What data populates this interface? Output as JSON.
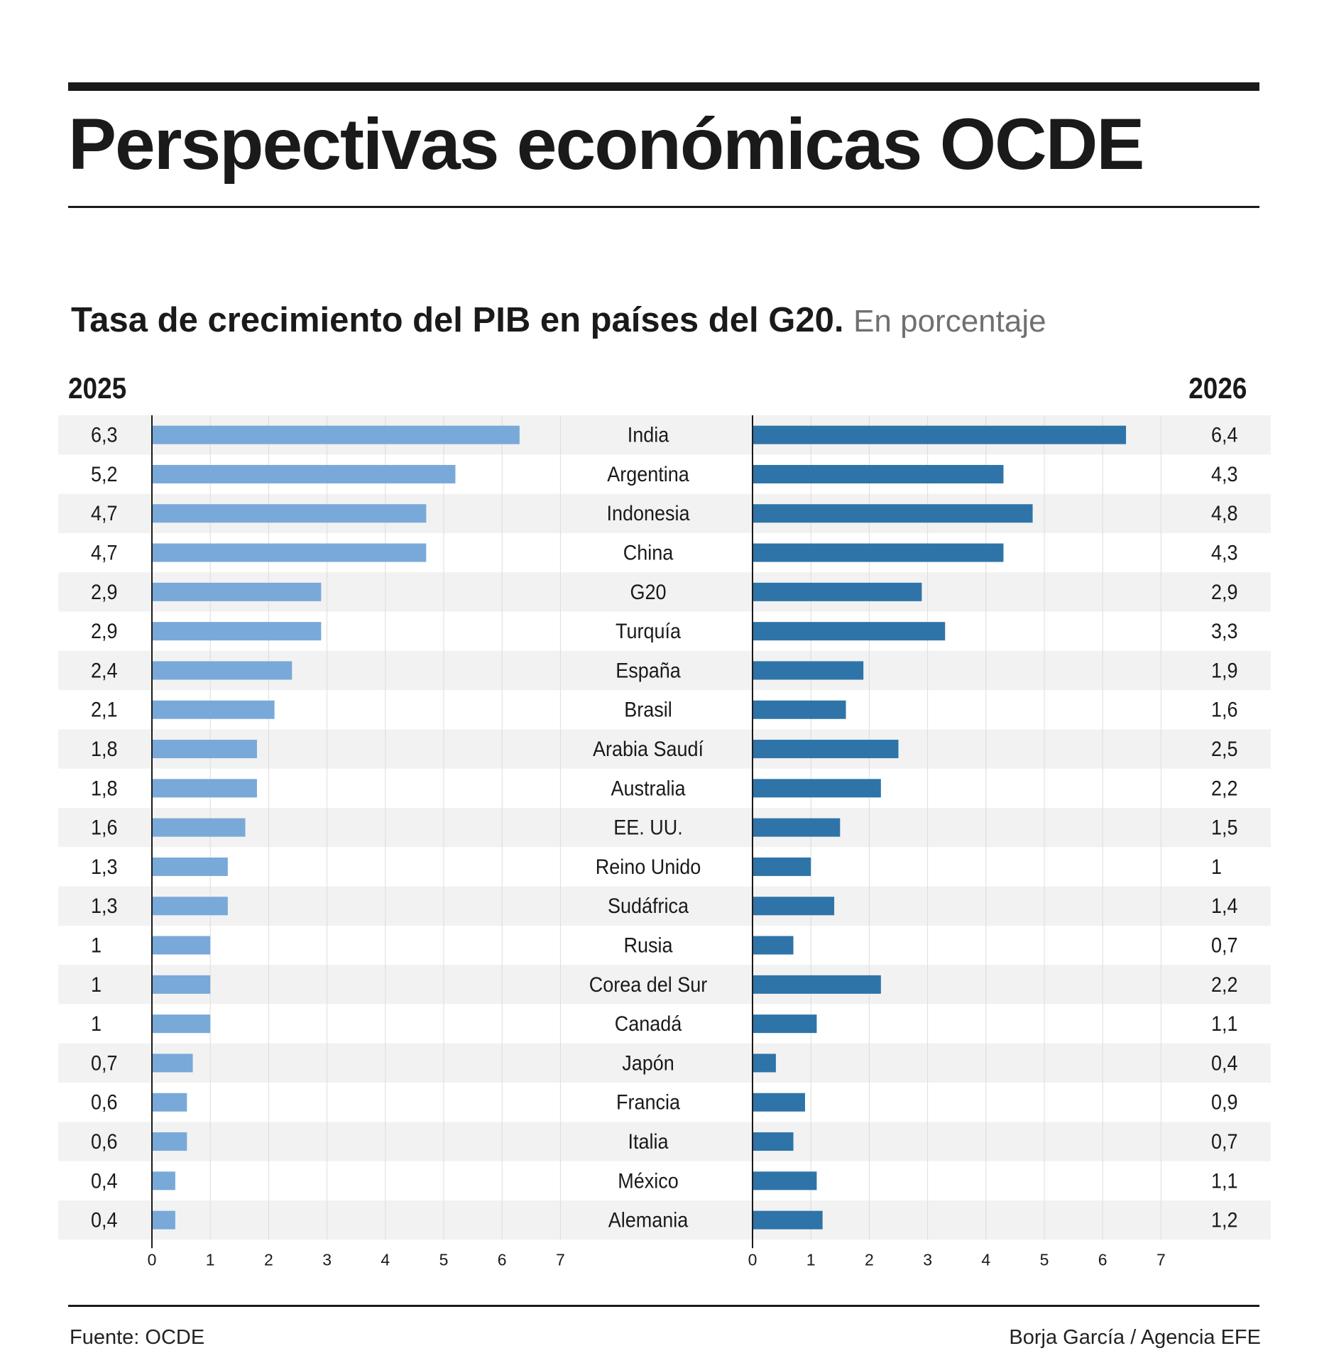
{
  "header": {
    "title": "Perspectivas económicas OCDE"
  },
  "chart_data": {
    "type": "bar",
    "orientation": "horizontal",
    "title": "Tasa de crecimiento del PIB en países del G20.",
    "subtitle": "En porcentaje",
    "categories": [
      "India",
      "Argentina",
      "Indonesia",
      "China",
      "G20",
      "Turquía",
      "España",
      "Brasil",
      "Arabia Saudí",
      "Australia",
      "EE. UU.",
      "Reino Unido",
      "Sudáfrica",
      "Rusia",
      "Corea del Sur",
      "Canadá",
      "Japón",
      "Francia",
      "Italia",
      "México",
      "Alemania"
    ],
    "series": [
      {
        "name": "2025",
        "color": "#79a9d9",
        "values": [
          6.3,
          5.2,
          4.7,
          4.7,
          2.9,
          2.9,
          2.4,
          2.1,
          1.8,
          1.8,
          1.6,
          1.3,
          1.3,
          1,
          1,
          1,
          0.7,
          0.6,
          0.6,
          0.4,
          0.4
        ],
        "labels": [
          "6,3",
          "5,2",
          "4,7",
          "4,7",
          "2,9",
          "2,9",
          "2,4",
          "2,1",
          "1,8",
          "1,8",
          "1,6",
          "1,3",
          "1,3",
          "1",
          "1",
          "1",
          "0,7",
          "0,6",
          "0,6",
          "0,4",
          "0,4"
        ]
      },
      {
        "name": "2026",
        "color": "#2e74a8",
        "values": [
          6.4,
          4.3,
          4.8,
          4.3,
          2.9,
          3.3,
          1.9,
          1.6,
          2.5,
          2.2,
          1.5,
          1,
          1.4,
          0.7,
          2.2,
          1.1,
          0.4,
          0.9,
          0.7,
          1.1,
          1.2
        ],
        "labels": [
          "6,4",
          "4,3",
          "4,8",
          "4,3",
          "2,9",
          "3,3",
          "1,9",
          "1,6",
          "2,5",
          "2,2",
          "1,5",
          "1",
          "1,4",
          "0,7",
          "2,2",
          "1,1",
          "0,4",
          "0,9",
          "0,7",
          "1,1",
          "1,2"
        ]
      }
    ],
    "xlim": [
      0,
      7
    ],
    "xticks": [
      "0",
      "1",
      "2",
      "3",
      "4",
      "5",
      "6",
      "7"
    ],
    "grid": true
  },
  "footer": {
    "source": "Fuente: OCDE",
    "credit": "Borja García / Agencia EFE"
  },
  "colors": {
    "band": "#f2f2f2",
    "grid": "#dcdcdc",
    "axis": "#1a1a1a"
  }
}
